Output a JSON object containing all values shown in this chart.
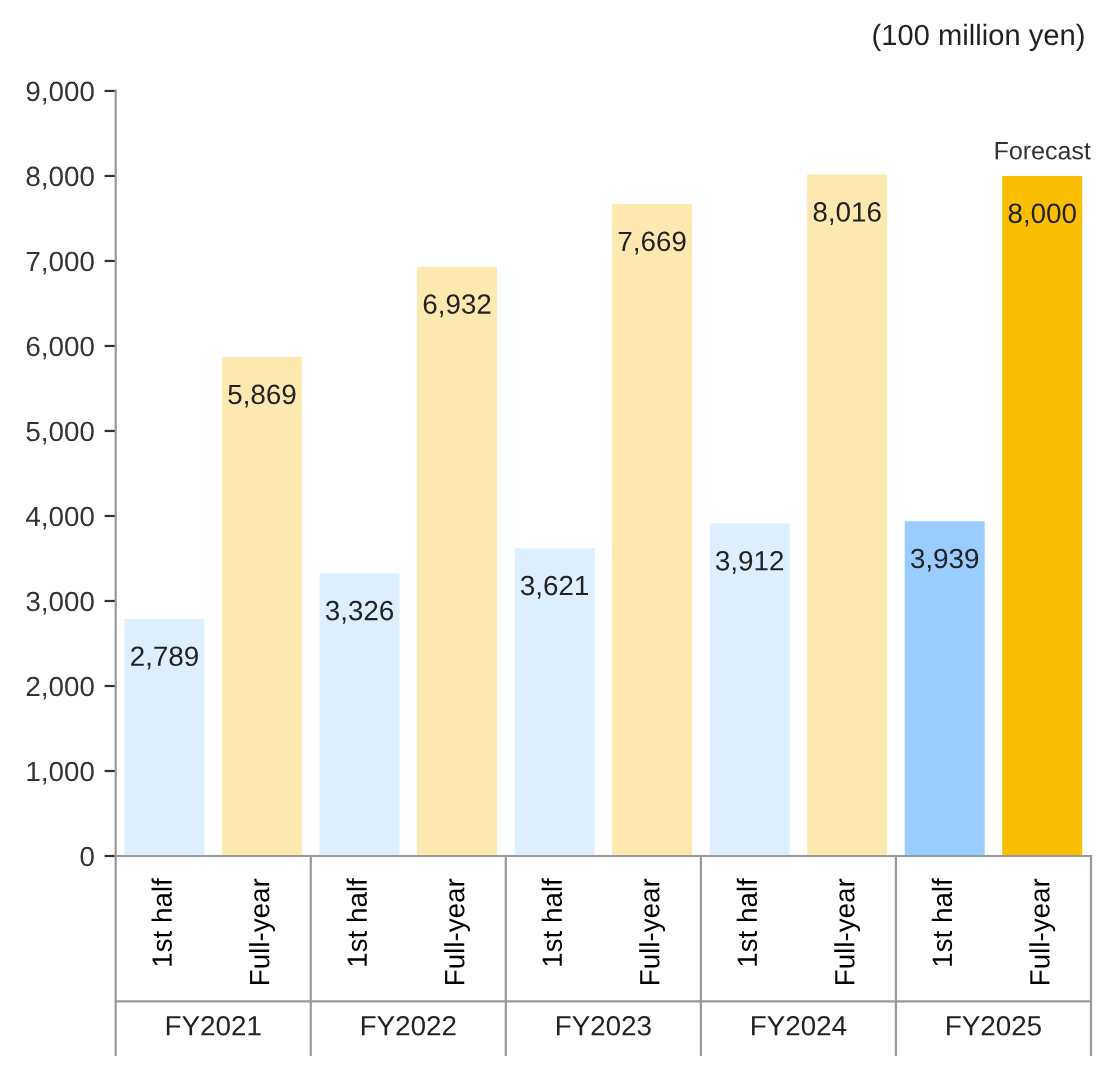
{
  "chart_data": {
    "type": "bar",
    "categories": [
      "1st half",
      "Full-year",
      "1st half",
      "Full-year",
      "1st half",
      "Full-year",
      "1st half",
      "Full-year",
      "1st half",
      "Full-year"
    ],
    "values": [
      2789,
      5869,
      3326,
      6932,
      3621,
      7669,
      3912,
      8016,
      3939,
      8000
    ],
    "colors": [
      "#ddeeff",
      "#fde9b0",
      "#ddeeff",
      "#fde9b0",
      "#ddeeff",
      "#fde9b0",
      "#ddeeff",
      "#fde9b0",
      "#99ccff",
      "#f9bf00"
    ],
    "value_labels": [
      "2,789",
      "5,869",
      "3,326",
      "6,932",
      "3,621",
      "7,669",
      "3,912",
      "8,016",
      "3,939",
      "8,000"
    ],
    "ylim": [
      0,
      9000
    ],
    "yticks": [
      0,
      {
        "value": 1000,
        "label": "1,000"
      },
      {
        "value": 2000,
        "label": "2,000"
      },
      {
        "value": 3000,
        "label": "3,000"
      },
      {
        "value": 4000,
        "label": "4,000"
      },
      {
        "value": 5000,
        "label": "5,000"
      },
      {
        "value": 6000,
        "label": "6,000"
      },
      {
        "value": 7000,
        "label": "7,000"
      },
      {
        "value": 8000,
        "label": "8,000"
      },
      {
        "value": 9000,
        "label": "9,000"
      }
    ],
    "annotations": [
      "FY2021",
      "FY2022",
      "FY2023",
      "FY2024",
      "FY2025",
      "Forecast",
      "(100 million yen)"
    ],
    "grid": false,
    "legend": false
  }
}
